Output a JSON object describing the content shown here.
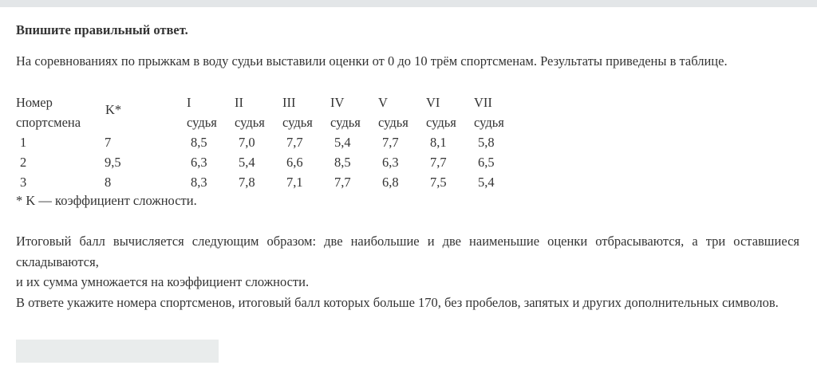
{
  "title": "Впишите правильный ответ.",
  "intro": "На соревнованиях по прыжкам в воду судьи выставили оценки от 0 до 10 трём спортсменам. Результаты приведены в таблице.",
  "table": {
    "col_athlete": [
      "Номер",
      "спортсмена"
    ],
    "col_k": "K*",
    "judges": [
      [
        "I",
        "судья"
      ],
      [
        "II",
        "судья"
      ],
      [
        "III",
        "судья"
      ],
      [
        "IV",
        "судья"
      ],
      [
        "V",
        "судья"
      ],
      [
        "VI",
        "судья"
      ],
      [
        "VII",
        "судья"
      ]
    ],
    "rows": [
      {
        "num": "1",
        "k": "7",
        "scores": [
          "8,5",
          "7,0",
          "7,7",
          "5,4",
          "7,7",
          "8,1",
          "5,8"
        ]
      },
      {
        "num": "2",
        "k": "9,5",
        "scores": [
          "6,3",
          "5,4",
          "6,6",
          "8,5",
          "6,3",
          "7,7",
          "6,5"
        ]
      },
      {
        "num": "3",
        "k": "8",
        "scores": [
          "8,3",
          "7,8",
          "7,1",
          "7,7",
          "6,8",
          "7,5",
          "5,4"
        ]
      }
    ]
  },
  "footnote": "* K —  коэффициент сложности.",
  "paragraph": [
    "Итоговый балл вычисляется следующим образом: две наибольшие и две наименьшие оценки отбрасываются, а три оставшиеся складываются,",
    "и их сумма умножается на коэффициент сложности.",
    "В ответе укажите номера спортсменов, итоговый балл которых больше 170, без пробелов, запятых и других дополнительных символов."
  ],
  "answer": {
    "value": "",
    "placeholder": ""
  }
}
